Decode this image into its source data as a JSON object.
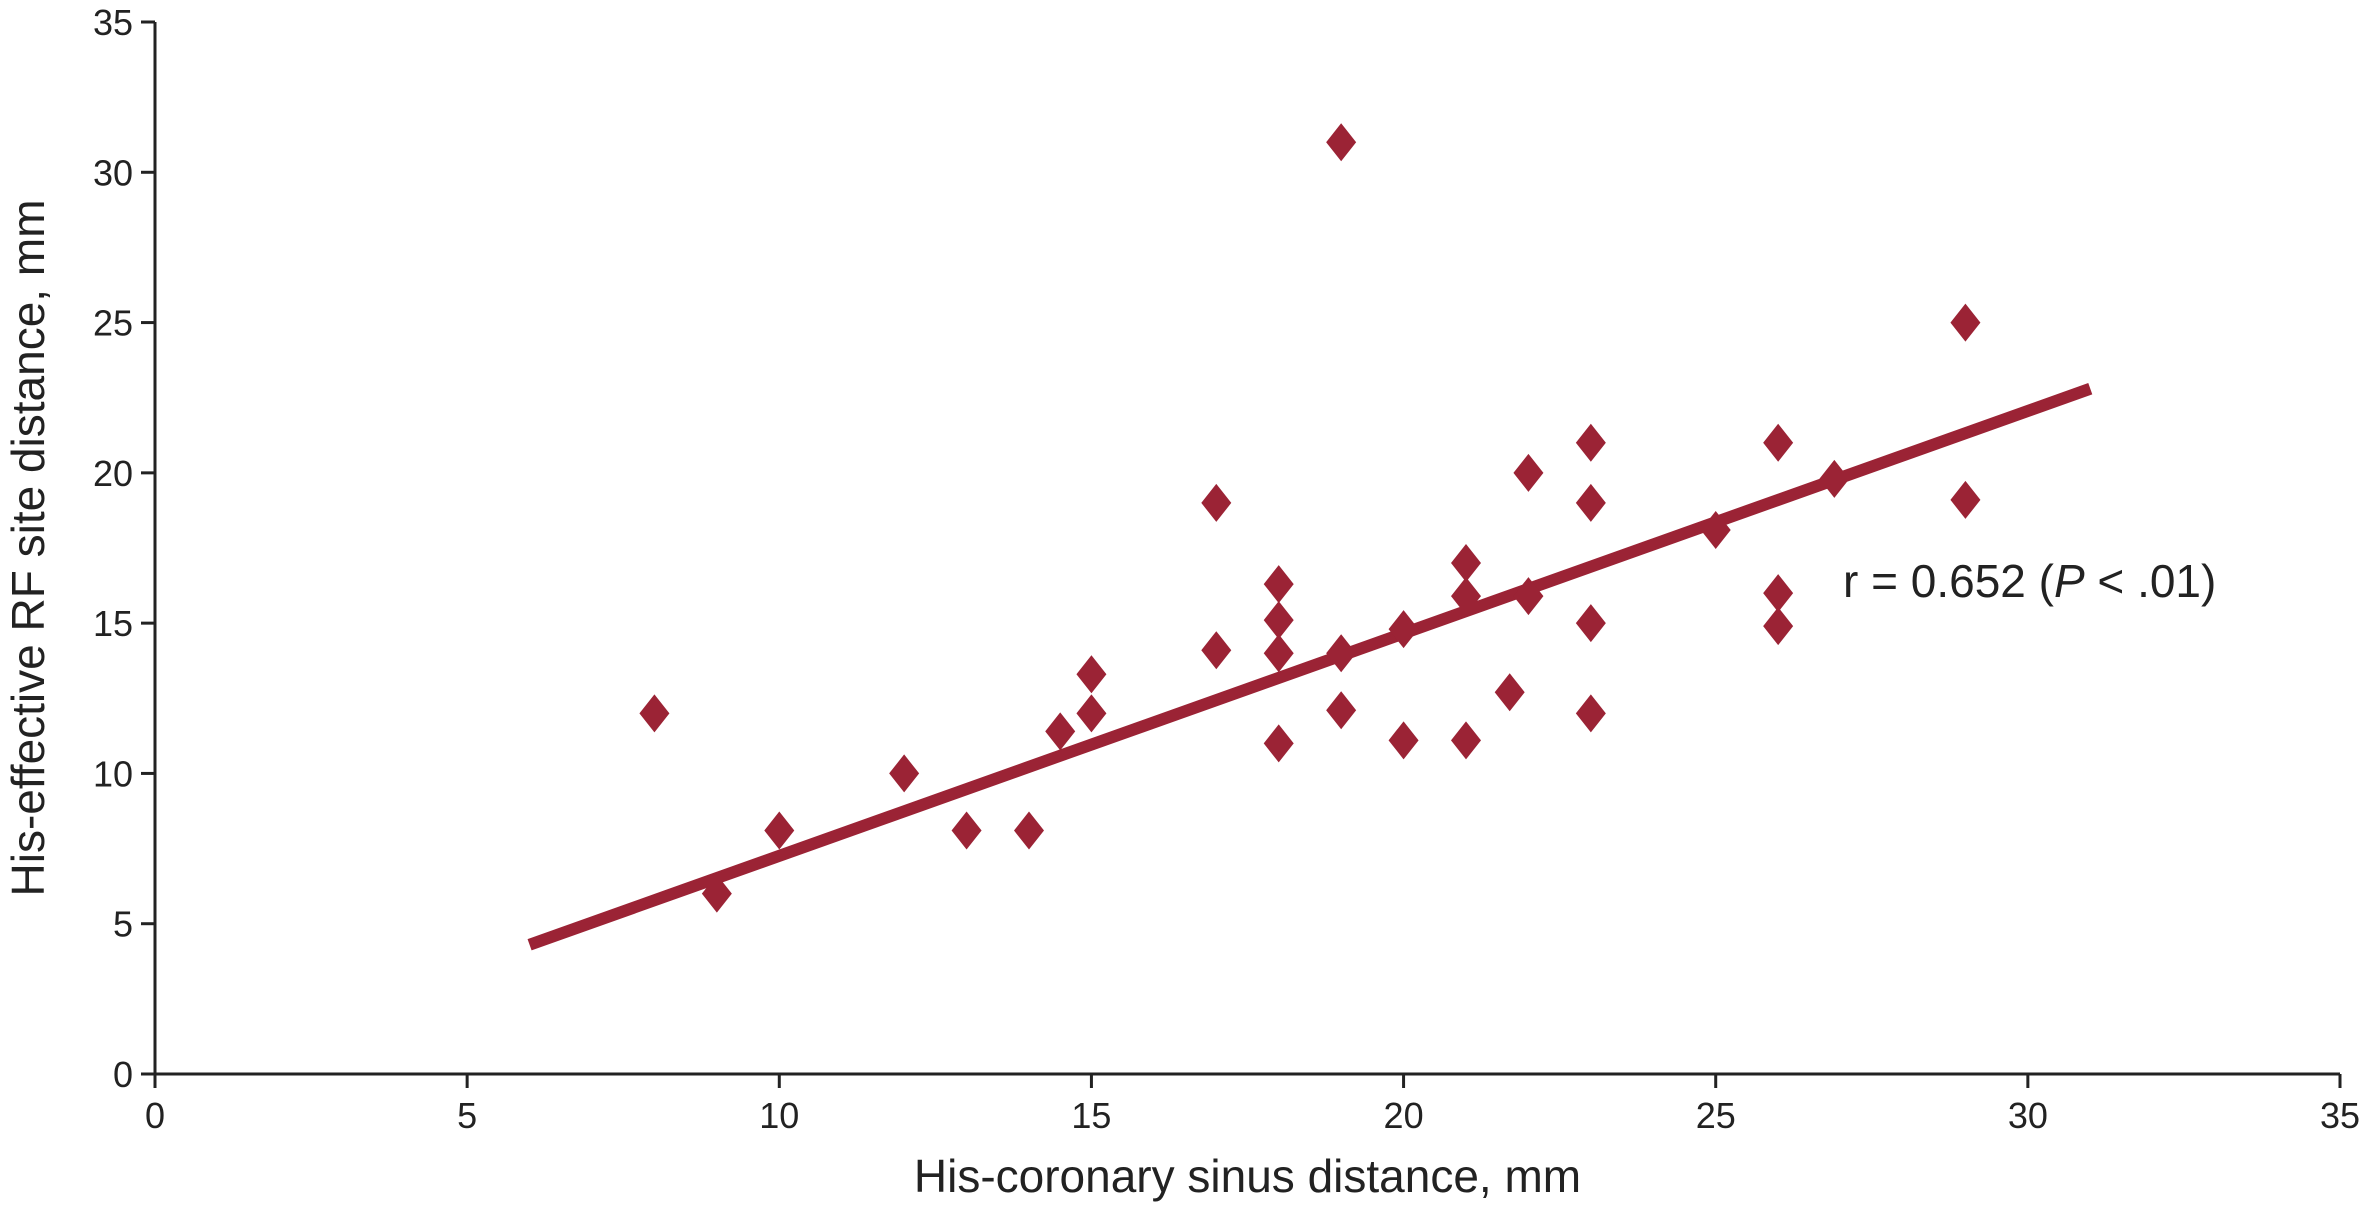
{
  "chart_data": {
    "type": "scatter",
    "title": "",
    "xlabel": "His-coronary sinus distance, mm",
    "ylabel": "His-effective RF site distance, mm",
    "xlim": [
      0,
      35
    ],
    "ylim": [
      0,
      35
    ],
    "xticks": [
      "0",
      "5",
      "10",
      "15",
      "20",
      "25",
      "30",
      "35"
    ],
    "yticks": [
      "0",
      "5",
      "10",
      "15",
      "20",
      "25",
      "30",
      "35"
    ],
    "grid": false,
    "legend": "none",
    "points": [
      {
        "x": 8,
        "y": 12
      },
      {
        "x": 9,
        "y": 6
      },
      {
        "x": 10,
        "y": 8.1
      },
      {
        "x": 12,
        "y": 10
      },
      {
        "x": 13,
        "y": 8.1
      },
      {
        "x": 14,
        "y": 8.1
      },
      {
        "x": 14.5,
        "y": 11.4
      },
      {
        "x": 15,
        "y": 12
      },
      {
        "x": 15,
        "y": 13.3
      },
      {
        "x": 17,
        "y": 19
      },
      {
        "x": 17,
        "y": 14.1
      },
      {
        "x": 18,
        "y": 16.3
      },
      {
        "x": 18,
        "y": 15.1
      },
      {
        "x": 18,
        "y": 14
      },
      {
        "x": 18,
        "y": 11
      },
      {
        "x": 19,
        "y": 31
      },
      {
        "x": 19,
        "y": 14
      },
      {
        "x": 19,
        "y": 12.1
      },
      {
        "x": 20,
        "y": 14.8
      },
      {
        "x": 20,
        "y": 11.1
      },
      {
        "x": 21,
        "y": 17
      },
      {
        "x": 21,
        "y": 15.9
      },
      {
        "x": 21,
        "y": 11.1
      },
      {
        "x": 21.7,
        "y": 12.7
      },
      {
        "x": 22,
        "y": 20
      },
      {
        "x": 22,
        "y": 15.9
      },
      {
        "x": 23,
        "y": 21
      },
      {
        "x": 23,
        "y": 19
      },
      {
        "x": 23,
        "y": 15
      },
      {
        "x": 23,
        "y": 12
      },
      {
        "x": 25,
        "y": 18.1
      },
      {
        "x": 26,
        "y": 21
      },
      {
        "x": 26,
        "y": 16
      },
      {
        "x": 26,
        "y": 14.9
      },
      {
        "x": 26.9,
        "y": 19.8
      },
      {
        "x": 29,
        "y": 25
      },
      {
        "x": 29,
        "y": 19.1
      }
    ],
    "fit_line": {
      "x": [
        6,
        31
      ],
      "y": [
        4.3,
        22.8
      ]
    },
    "annotation": {
      "prefix": "r = 0.652 (",
      "italic": "P",
      "suffix": " < .01)",
      "x": 28,
      "y": 16.4
    },
    "colors": {
      "marker": "#9b2335",
      "line": "#9b2335",
      "axis": "#222222"
    }
  }
}
